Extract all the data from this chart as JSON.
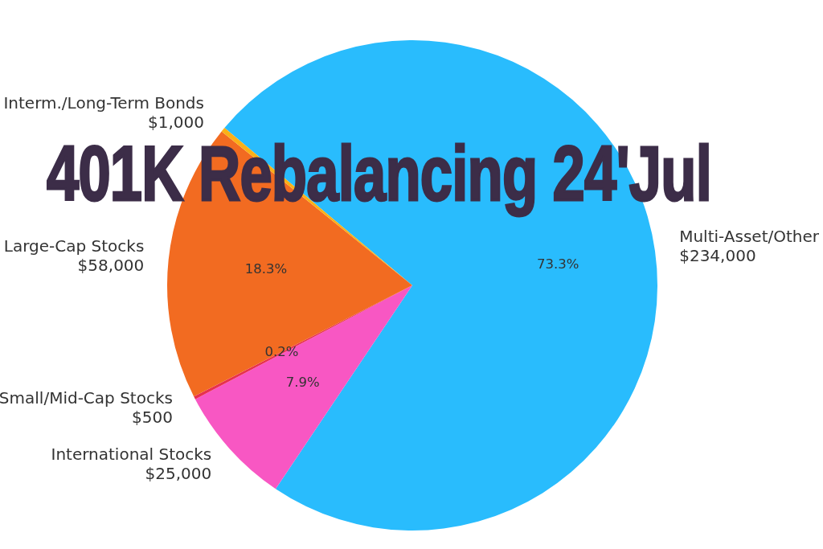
{
  "chart_data": {
    "type": "pie",
    "title": "401K Rebalancing 24'Jul",
    "categories": [
      "Multi-Asset/Other\n$234,000",
      "International Stocks\n$25,000",
      "Small/Mid-Cap Stocks\n$500",
      "Large-Cap Stocks\n$58,000",
      "Interm./Long-Term Bonds\n$1,000"
    ],
    "values": [
      73.3,
      7.9,
      0.2,
      18.3,
      0.3
    ],
    "colors": [
      "#29bcfd",
      "#f857c3",
      "#e8304e",
      "#f26b21",
      "#fbb016"
    ],
    "value_labels": [
      "73.3%",
      "7.9%",
      "0.2%",
      "18.3%",
      null
    ]
  }
}
